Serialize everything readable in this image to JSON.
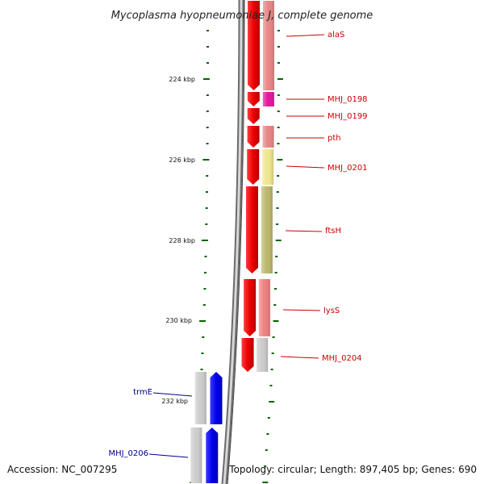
{
  "title": "Mycoplasma hyopneumoniae J, complete genome",
  "footer": {
    "accession": "Accession: NC_007295",
    "topology": "Topology: circular; Length: 897,405 bp; Genes: 690"
  },
  "scale": {
    "unit": "kbp",
    "ticks": [
      {
        "kbp": 224,
        "label": "224 kbp"
      },
      {
        "kbp": 226,
        "label": "226 kbp"
      },
      {
        "kbp": 228,
        "label": "228 kbp"
      },
      {
        "kbp": 230,
        "label": "230 kbp"
      },
      {
        "kbp": 232,
        "label": "232 kbp"
      }
    ]
  },
  "genes": [
    {
      "name": "alaS",
      "strand": "forward",
      "color": "#e88585"
    },
    {
      "name": "MHJ_0198",
      "strand": "forward",
      "color": "#e6139a"
    },
    {
      "name": "MHJ_0199",
      "strand": "forward",
      "color": "#ffffff"
    },
    {
      "name": "pth",
      "strand": "forward",
      "color": "#e88585"
    },
    {
      "name": "MHJ_0201",
      "strand": "forward",
      "color": "#f0e68c"
    },
    {
      "name": "ftsH",
      "strand": "forward",
      "color": "#bdb76b"
    },
    {
      "name": "lysS",
      "strand": "forward",
      "color": "#f08080"
    },
    {
      "name": "MHJ_0204",
      "strand": "forward",
      "color": "#cccccc"
    },
    {
      "name": "trmE",
      "strand": "reverse",
      "color": "#cccccc"
    },
    {
      "name": "MHJ_0206",
      "strand": "reverse",
      "color": "#cccccc"
    }
  ],
  "colors": {
    "forward_strand": "#ff0000",
    "reverse_strand": "#0000ff",
    "forward_label": "#cc0000",
    "reverse_label": "#00008b",
    "tick": "#006400",
    "backbone": "#808080"
  }
}
